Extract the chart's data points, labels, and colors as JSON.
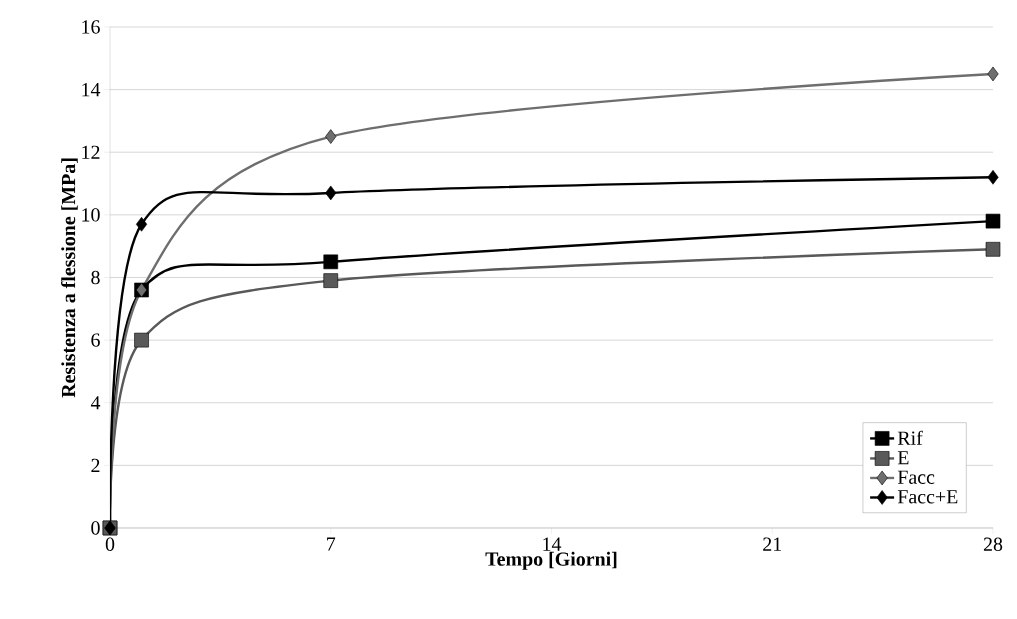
{
  "chart_data": {
    "type": "line",
    "xlabel": "Tempo [Giorni]",
    "ylabel": "Resistenza  a flessione [MPa]",
    "xlim": [
      0,
      28
    ],
    "xticks": [
      0,
      7,
      14,
      21,
      28
    ],
    "ylim": [
      0,
      16
    ],
    "yticks": [
      0,
      2,
      4,
      6,
      8,
      10,
      12,
      14,
      16
    ],
    "grid": "y",
    "legend": "bottom right",
    "line_style": "solid",
    "series": [
      {
        "name": "Rif",
        "color": "#000000",
        "marker": "square",
        "x": [
          0,
          1,
          7,
          28
        ],
        "values": [
          0,
          7.6,
          8.5,
          9.8
        ]
      },
      {
        "name": "E",
        "color": "#595959",
        "marker": "square",
        "x": [
          0,
          1,
          7,
          28
        ],
        "values": [
          0,
          6.0,
          7.9,
          8.9
        ]
      },
      {
        "name": "Facc",
        "color": "#6e6e6e",
        "marker": "diamond",
        "x": [
          0,
          1,
          7,
          28
        ],
        "values": [
          0,
          7.6,
          12.5,
          14.5
        ]
      },
      {
        "name": "Facc+E",
        "color": "#000000",
        "marker": "diamond",
        "x": [
          0,
          1,
          7,
          28
        ],
        "values": [
          0,
          9.7,
          10.7,
          11.2
        ]
      }
    ]
  }
}
